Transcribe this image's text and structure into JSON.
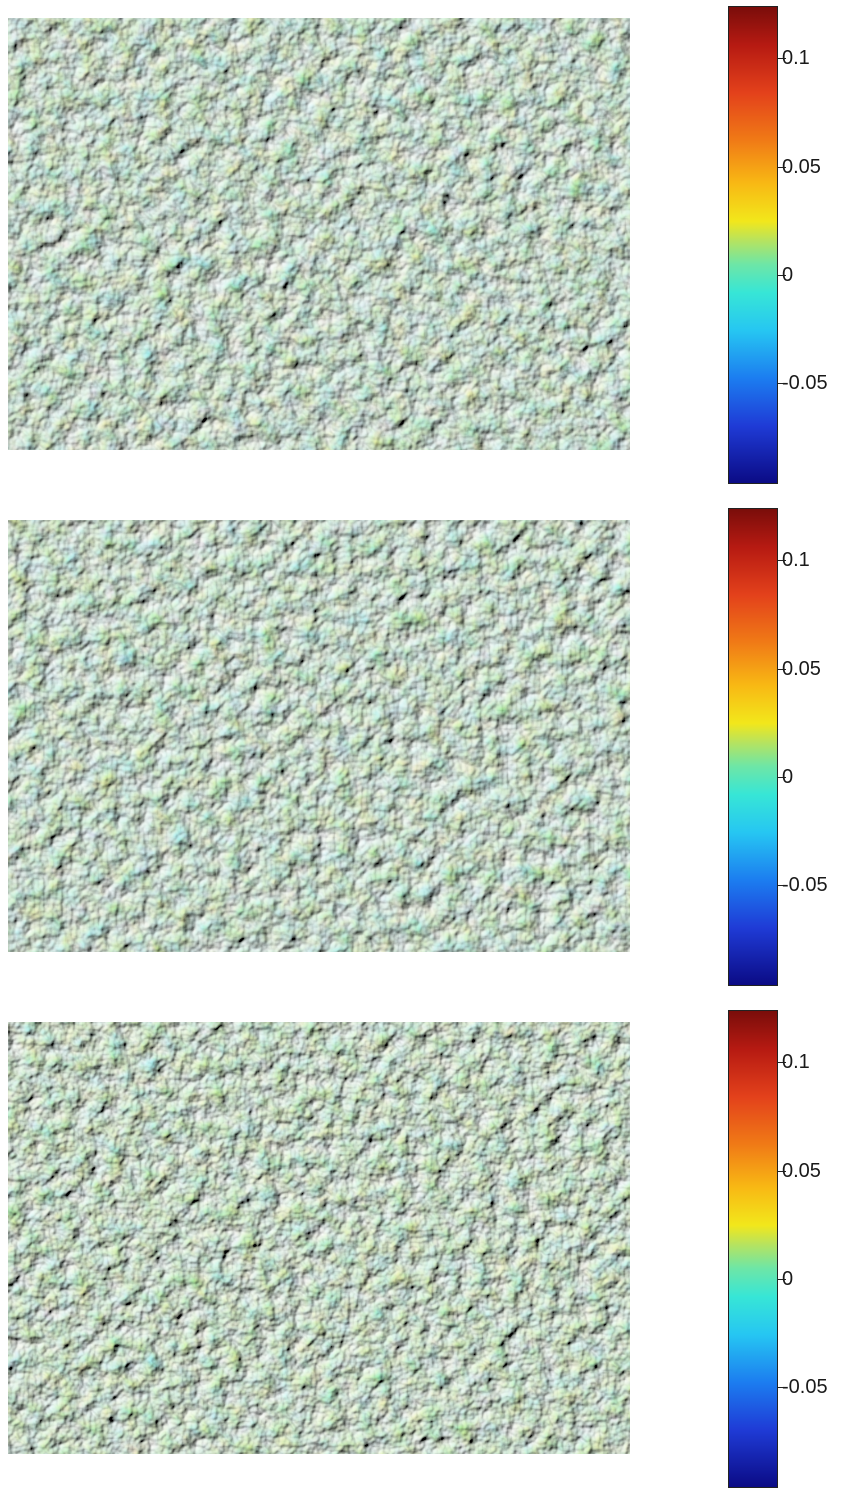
{
  "chart_data": [
    {
      "type": "heatmap",
      "title": "",
      "xlabel": "",
      "ylabel": "",
      "colorbar": {
        "colormap": "jet",
        "ticks": [
          0.1,
          0.05,
          0,
          -0.05
        ],
        "tick_labels": [
          "0.1",
          "0.05",
          "0",
          "-0.05"
        ],
        "range": [
          -0.09,
          0.12
        ]
      },
      "colors": {
        "dominant": "#7fd39a",
        "peaks": "#c9b536",
        "valleys": "#3fa9d8"
      }
    },
    {
      "type": "heatmap",
      "title": "",
      "xlabel": "",
      "ylabel": "",
      "colorbar": {
        "colormap": "jet",
        "ticks": [
          0.1,
          0.05,
          0,
          -0.05
        ],
        "tick_labels": [
          "0.1",
          "0.05",
          "0",
          "-0.05"
        ],
        "range": [
          -0.09,
          0.12
        ]
      },
      "colors": {
        "dominant": "#7fd39a",
        "peaks": "#c9b536",
        "valleys": "#3fa9d8"
      }
    },
    {
      "type": "heatmap",
      "title": "",
      "xlabel": "",
      "ylabel": "",
      "colorbar": {
        "colormap": "jet",
        "ticks": [
          0.1,
          0.05,
          0,
          -0.05
        ],
        "tick_labels": [
          "0.1",
          "0.05",
          "0",
          "-0.05"
        ],
        "range": [
          -0.09,
          0.12
        ]
      },
      "colors": {
        "dominant": "#7fd39a",
        "peaks": "#c9b536",
        "valleys": "#3fa9d8"
      }
    }
  ]
}
